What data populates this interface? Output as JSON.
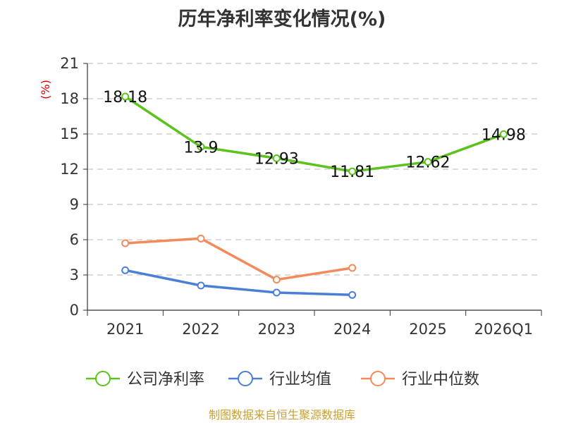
{
  "chart_data": {
    "type": "line",
    "title": "历年净利率变化情况(%)",
    "ylabel": "(%)",
    "xlabel": "",
    "categories": [
      "2021",
      "2022",
      "2023",
      "2024",
      "2025",
      "2026Q1"
    ],
    "ylim": [
      0,
      21
    ],
    "yticks": [
      0,
      3,
      6,
      9,
      12,
      15,
      18,
      21
    ],
    "grid": "horizontal-dashed",
    "legend_position": "bottom",
    "series": [
      {
        "name": "公司净利率",
        "color": "#5cc21c",
        "values": [
          18.18,
          13.9,
          12.93,
          11.81,
          12.62,
          14.98
        ],
        "labels": [
          "18.18",
          "13.9",
          "12.93",
          "11.81",
          "12.62",
          "14.98"
        ]
      },
      {
        "name": "行业均值",
        "color": "#4a7fd6",
        "values": [
          3.4,
          2.1,
          1.5,
          1.3,
          null,
          null
        ]
      },
      {
        "name": "行业中位数",
        "color": "#f28a5a",
        "values": [
          5.7,
          6.1,
          2.6,
          3.6,
          null,
          null
        ]
      }
    ]
  },
  "source_text": "制图数据来自恒生聚源数据库"
}
